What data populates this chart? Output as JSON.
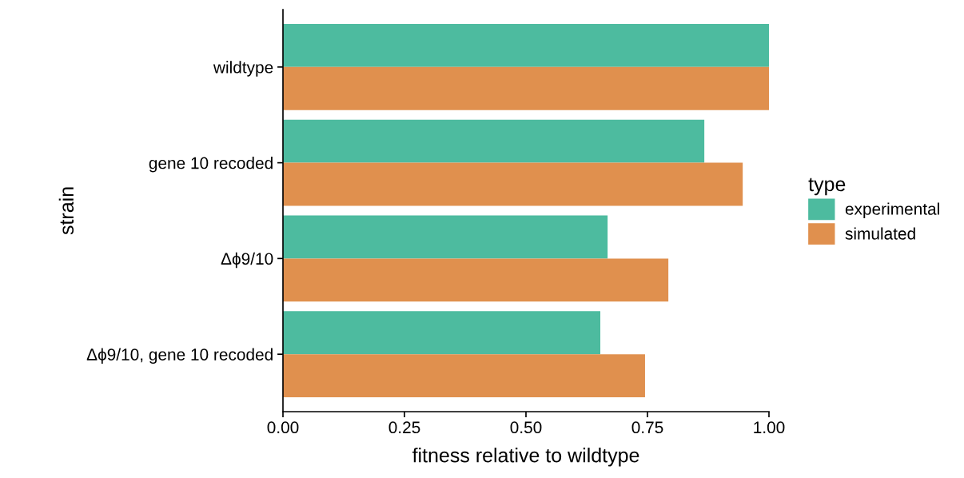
{
  "chart_data": {
    "type": "bar",
    "orientation": "horizontal",
    "xlabel": "fitness relative to wildtype",
    "ylabel": "strain",
    "legend_title": "type",
    "legend": "right",
    "categories": [
      "wildtype",
      "gene 10 recoded",
      "Δϕ9/10",
      "Δϕ9/10, gene 10 recoded"
    ],
    "series": [
      {
        "name": "experimental",
        "color": "#4dbb9f",
        "values": [
          1.0,
          0.867,
          0.668,
          0.653
        ]
      },
      {
        "name": "simulated",
        "color": "#e0904e",
        "values": [
          1.0,
          0.946,
          0.793,
          0.745
        ]
      }
    ],
    "xlim": [
      0,
      1
    ],
    "xticks": [
      {
        "value": 0,
        "label": "0.00"
      },
      {
        "value": 0.25,
        "label": "0.25"
      },
      {
        "value": 0.5,
        "label": "0.50"
      },
      {
        "value": 0.75,
        "label": "0.75"
      },
      {
        "value": 1,
        "label": "1.00"
      }
    ],
    "grid": false
  }
}
